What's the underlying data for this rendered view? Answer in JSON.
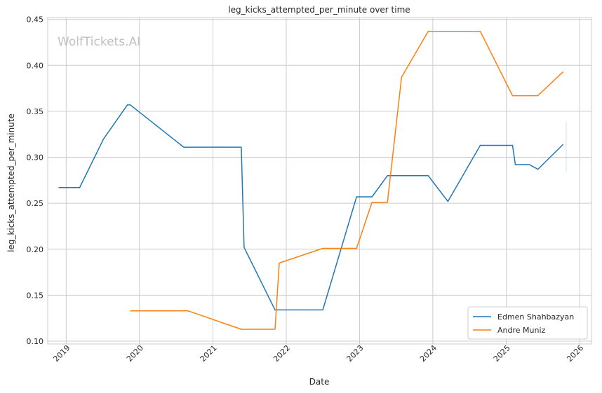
{
  "watermark": "WolfTickets.AI",
  "chart_data": {
    "type": "line",
    "title": "leg_kicks_attempted_per_minute over time",
    "xlabel": "Date",
    "ylabel": "leg_kicks_attempted_per_minute",
    "x_ticks": [
      "2019",
      "2020",
      "2021",
      "2022",
      "2023",
      "2024",
      "2025",
      "2026"
    ],
    "y_ticks": [
      "0.10",
      "0.15",
      "0.20",
      "0.25",
      "0.30",
      "0.35",
      "0.40",
      "0.45"
    ],
    "xlim": [
      "2018-10-01",
      "2026-03-01"
    ],
    "ylim": [
      0.097,
      0.452
    ],
    "grid": true,
    "legend_position": "lower-right",
    "series": [
      {
        "name": "Edmen Shahbazyan",
        "color": "#1f77b4",
        "points": [
          {
            "x": "2018-11-24",
            "y": 0.267
          },
          {
            "x": "2019-03-09",
            "y": 0.267
          },
          {
            "x": "2019-07-06",
            "y": 0.32
          },
          {
            "x": "2019-11-02",
            "y": 0.357
          },
          {
            "x": "2019-11-16",
            "y": 0.357
          },
          {
            "x": "2020-08-08",
            "y": 0.311
          },
          {
            "x": "2021-05-22",
            "y": 0.311
          },
          {
            "x": "2021-06-05",
            "y": 0.202
          },
          {
            "x": "2021-11-06",
            "y": 0.134
          },
          {
            "x": "2022-07-02",
            "y": 0.134
          },
          {
            "x": "2022-12-17",
            "y": 0.257
          },
          {
            "x": "2023-03-04",
            "y": 0.257
          },
          {
            "x": "2023-05-20",
            "y": 0.28
          },
          {
            "x": "2023-12-09",
            "y": 0.28
          },
          {
            "x": "2024-03-16",
            "y": 0.252
          },
          {
            "x": "2024-08-24",
            "y": 0.313
          },
          {
            "x": "2025-02-01",
            "y": 0.313
          },
          {
            "x": "2025-02-15",
            "y": 0.292
          },
          {
            "x": "2025-04-26",
            "y": 0.292
          },
          {
            "x": "2025-06-07",
            "y": 0.287
          },
          {
            "x": "2025-10-11",
            "y": 0.314
          }
        ]
      },
      {
        "name": "Andre Muniz",
        "color": "#ff7f0e",
        "points": [
          {
            "x": "2019-11-16",
            "y": 0.133
          },
          {
            "x": "2020-08-29",
            "y": 0.133
          },
          {
            "x": "2021-05-22",
            "y": 0.113
          },
          {
            "x": "2021-11-06",
            "y": 0.113
          },
          {
            "x": "2021-11-27",
            "y": 0.185
          },
          {
            "x": "2022-07-02",
            "y": 0.201
          },
          {
            "x": "2022-12-17",
            "y": 0.201
          },
          {
            "x": "2023-03-04",
            "y": 0.251
          },
          {
            "x": "2023-05-20",
            "y": 0.251
          },
          {
            "x": "2023-07-29",
            "y": 0.387
          },
          {
            "x": "2023-12-09",
            "y": 0.437
          },
          {
            "x": "2024-08-24",
            "y": 0.437
          },
          {
            "x": "2025-02-01",
            "y": 0.367
          },
          {
            "x": "2025-06-07",
            "y": 0.367
          },
          {
            "x": "2025-10-11",
            "y": 0.393
          }
        ]
      }
    ]
  }
}
